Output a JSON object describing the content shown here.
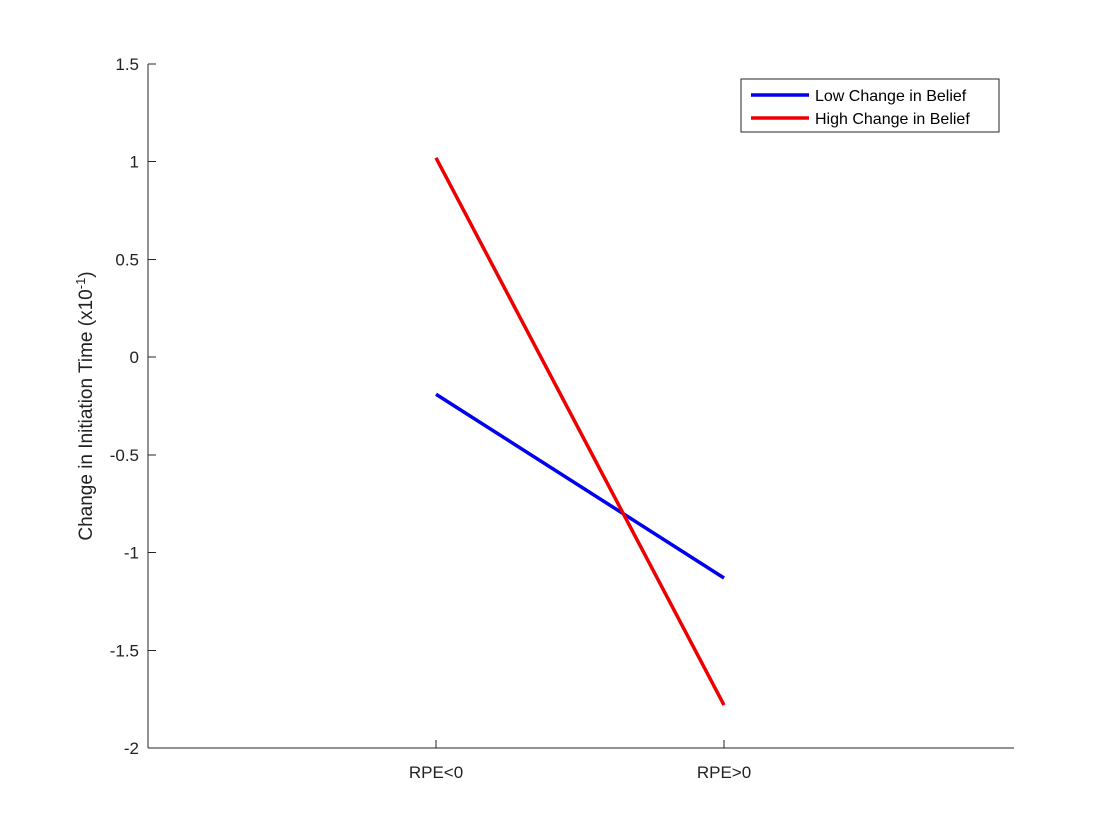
{
  "chart_data": {
    "type": "line",
    "categories": [
      "RPE<0",
      "RPE>0"
    ],
    "ylabel_main": "Change in Initiation Time (x10",
    "ylabel_exponent": "-1",
    "ylabel_close": ")",
    "ylim": [
      -2,
      1.5
    ],
    "yticks": [
      -2,
      -1.5,
      -1,
      -0.5,
      0,
      0.5,
      1,
      1.5
    ],
    "ytick_labels": [
      "-2",
      "-1.5",
      "-1",
      "-0.5",
      "0",
      "0.5",
      "1",
      "1.5"
    ],
    "grid": false,
    "legend_position": "top-right",
    "series": [
      {
        "name": "Low Change in Belief",
        "color": "#0000ee",
        "values": [
          -0.19,
          -1.13
        ]
      },
      {
        "name": "High Change in Belief",
        "color": "#ee0000",
        "values": [
          1.02,
          -1.78
        ]
      }
    ]
  }
}
